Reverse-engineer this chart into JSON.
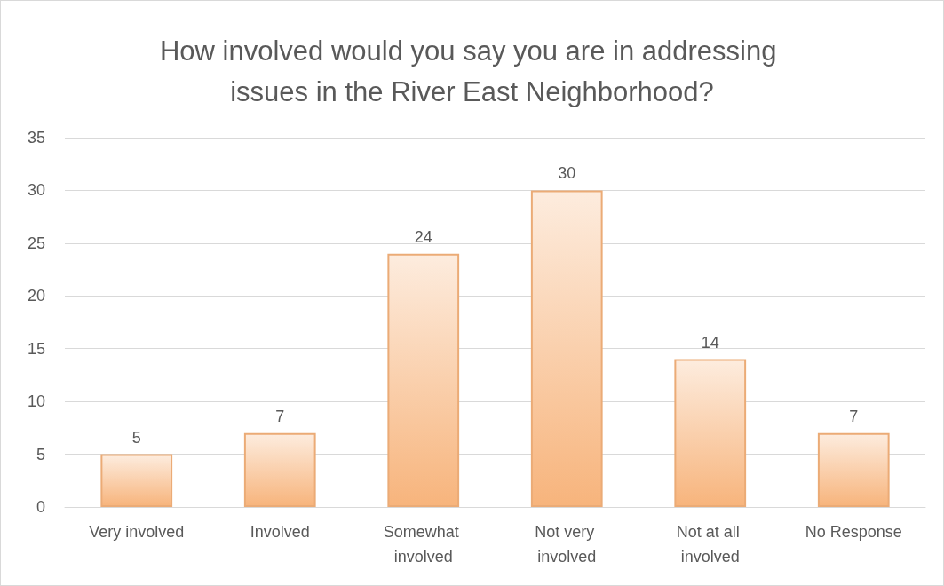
{
  "chart_data": {
    "type": "bar",
    "title": "How involved would you say you are in addressing issues in the River East Neighborhood?",
    "categories": [
      "Very involved",
      "Involved",
      "Somewhat involved",
      "Not very involved",
      "Not at all involved",
      "No Response"
    ],
    "values": [
      5,
      7,
      24,
      30,
      14,
      7
    ],
    "color": "#f7b47c",
    "ylim": [
      0,
      35
    ],
    "yticks": [
      0,
      5,
      10,
      15,
      20,
      25,
      30,
      35
    ],
    "grid": "y",
    "data_labels": true
  }
}
